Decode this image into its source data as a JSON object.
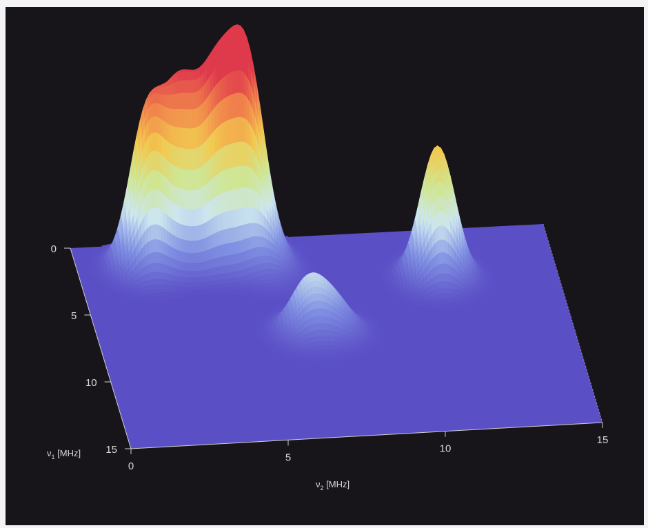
{
  "chart_data": {
    "type": "surface3d",
    "title": "",
    "x_axis": {
      "label": "ν",
      "label_subscript": "2",
      "label_unit": "[MHz]",
      "range": [
        0,
        15
      ],
      "ticks": [
        0,
        5,
        10,
        15
      ]
    },
    "y_axis": {
      "label": "ν",
      "label_subscript": "1",
      "label_unit": "[MHz]",
      "range": [
        0,
        15
      ],
      "ticks": [
        0,
        5,
        10,
        15
      ]
    },
    "z_axis": {
      "label": "",
      "shown": false
    },
    "peaks": [
      {
        "nu2": 2.2,
        "nu1": 1.8,
        "height": 0.66
      },
      {
        "nu2": 3.3,
        "nu1": 1.5,
        "height": 0.67
      },
      {
        "nu2": 4.4,
        "nu1": 1.6,
        "height": 0.7
      },
      {
        "nu2": 5.4,
        "nu1": 1.5,
        "height": 0.83
      },
      {
        "nu2": 6.0,
        "nu1": 2.7,
        "height": 0.1
      },
      {
        "nu2": 11.2,
        "nu1": 3.6,
        "height": 0.58
      },
      {
        "nu2": 6.6,
        "nu1": 7.2,
        "height": 0.22
      },
      {
        "nu2": 7.5,
        "nu1": 7.3,
        "height": 0.13
      }
    ],
    "colormap": [
      "#5b4fc6",
      "#7f8fe2",
      "#cde6ef",
      "#cfe694",
      "#f2c94f",
      "#f1874c",
      "#df3a4c"
    ],
    "background": "#17151a",
    "grid": false
  }
}
